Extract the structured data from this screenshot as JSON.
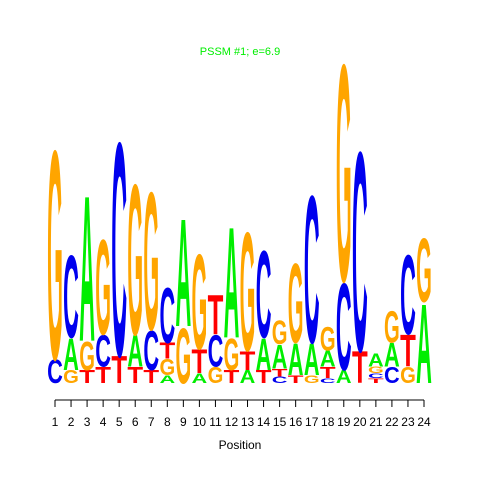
{
  "chart_data": {
    "type": "logo",
    "title": "PSSM #1; e=6.9",
    "x_label": "Position",
    "xlim": [
      1,
      24
    ],
    "xticks": [
      1,
      2,
      3,
      4,
      5,
      6,
      7,
      8,
      9,
      10,
      11,
      12,
      13,
      14,
      15,
      16,
      17,
      18,
      19,
      20,
      21,
      22,
      23,
      24
    ],
    "ylim": [
      0,
      2
    ],
    "colors": {
      "A": "#00ee00",
      "C": "#0000ee",
      "G": "#ffa500",
      "T": "#ff0000"
    },
    "stacks": [
      {
        "letters": [
          "C",
          "G"
        ],
        "values": [
          0.15,
          1.32
        ]
      },
      {
        "letters": [
          "G",
          "A",
          "C"
        ],
        "values": [
          0.08,
          0.2,
          0.52
        ]
      },
      {
        "letters": [
          "T",
          "G",
          "A"
        ],
        "values": [
          0.08,
          0.18,
          0.92
        ]
      },
      {
        "letters": [
          "T",
          "C",
          "G"
        ],
        "values": [
          0.1,
          0.2,
          0.6
        ]
      },
      {
        "letters": [
          "T",
          "C"
        ],
        "values": [
          0.17,
          1.35
        ]
      },
      {
        "letters": [
          "T",
          "A",
          "G"
        ],
        "values": [
          0.1,
          0.2,
          0.95
        ]
      },
      {
        "letters": [
          "T",
          "C",
          "G"
        ],
        "values": [
          0.08,
          0.25,
          0.87
        ]
      },
      {
        "letters": [
          "A",
          "G",
          "T",
          "C"
        ],
        "values": [
          0.05,
          0.1,
          0.1,
          0.35
        ]
      },
      {
        "letters": [
          "G",
          "A"
        ],
        "values": [
          0.35,
          0.68
        ]
      },
      {
        "letters": [
          "A",
          "T",
          "G"
        ],
        "values": [
          0.06,
          0.15,
          0.6
        ]
      },
      {
        "letters": [
          "G",
          "C",
          "T"
        ],
        "values": [
          0.1,
          0.2,
          0.25
        ]
      },
      {
        "letters": [
          "T",
          "G",
          "A"
        ],
        "values": [
          0.08,
          0.2,
          0.7
        ]
      },
      {
        "letters": [
          "A",
          "T",
          "G"
        ],
        "values": [
          0.08,
          0.12,
          0.75
        ]
      },
      {
        "letters": [
          "T",
          "A",
          "C"
        ],
        "values": [
          0.08,
          0.2,
          0.55
        ]
      },
      {
        "letters": [
          "C",
          "T",
          "A",
          "G"
        ],
        "values": [
          0.04,
          0.05,
          0.15,
          0.15
        ]
      },
      {
        "letters": [
          "T",
          "A",
          "G"
        ],
        "values": [
          0.05,
          0.2,
          0.5
        ]
      },
      {
        "letters": [
          "G",
          "A",
          "C"
        ],
        "values": [
          0.05,
          0.2,
          0.93
        ]
      },
      {
        "letters": [
          "C",
          "T",
          "A",
          "G"
        ],
        "values": [
          0.03,
          0.07,
          0.1,
          0.15
        ]
      },
      {
        "letters": [
          "A",
          "C",
          "G"
        ],
        "values": [
          0.08,
          0.55,
          1.37
        ]
      },
      {
        "letters": [
          "T",
          "C"
        ],
        "values": [
          0.2,
          1.26
        ]
      },
      {
        "letters": [
          "T",
          "C",
          "G",
          "A"
        ],
        "values": [
          0.03,
          0.03,
          0.04,
          0.08
        ]
      },
      {
        "letters": [
          "C",
          "A",
          "G"
        ],
        "values": [
          0.1,
          0.15,
          0.2
        ]
      },
      {
        "letters": [
          "G",
          "T",
          "C"
        ],
        "values": [
          0.1,
          0.2,
          0.5
        ]
      },
      {
        "letters": [
          "A",
          "G"
        ],
        "values": [
          0.5,
          0.4
        ]
      }
    ]
  }
}
